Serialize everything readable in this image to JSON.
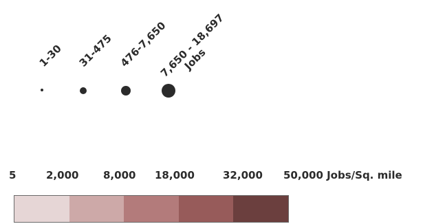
{
  "point_legend": {
    "items": [
      {
        "label": "1-30",
        "unit": ""
      },
      {
        "label": "31-475",
        "unit": ""
      },
      {
        "label": "476-7,650",
        "unit": ""
      },
      {
        "label": "7,650 - 18,697",
        "unit": "Jobs"
      }
    ],
    "dot_color": "#2b2b2b"
  },
  "density_legend": {
    "breaks": [
      "5",
      "2,000",
      "8,000",
      "18,000",
      "32,000",
      "50,000 Jobs/Sq. mile"
    ],
    "colors": [
      "#e6d6d6",
      "#cda9a8",
      "#b37b7b",
      "#975b5a",
      "#6b3f3e"
    ]
  }
}
